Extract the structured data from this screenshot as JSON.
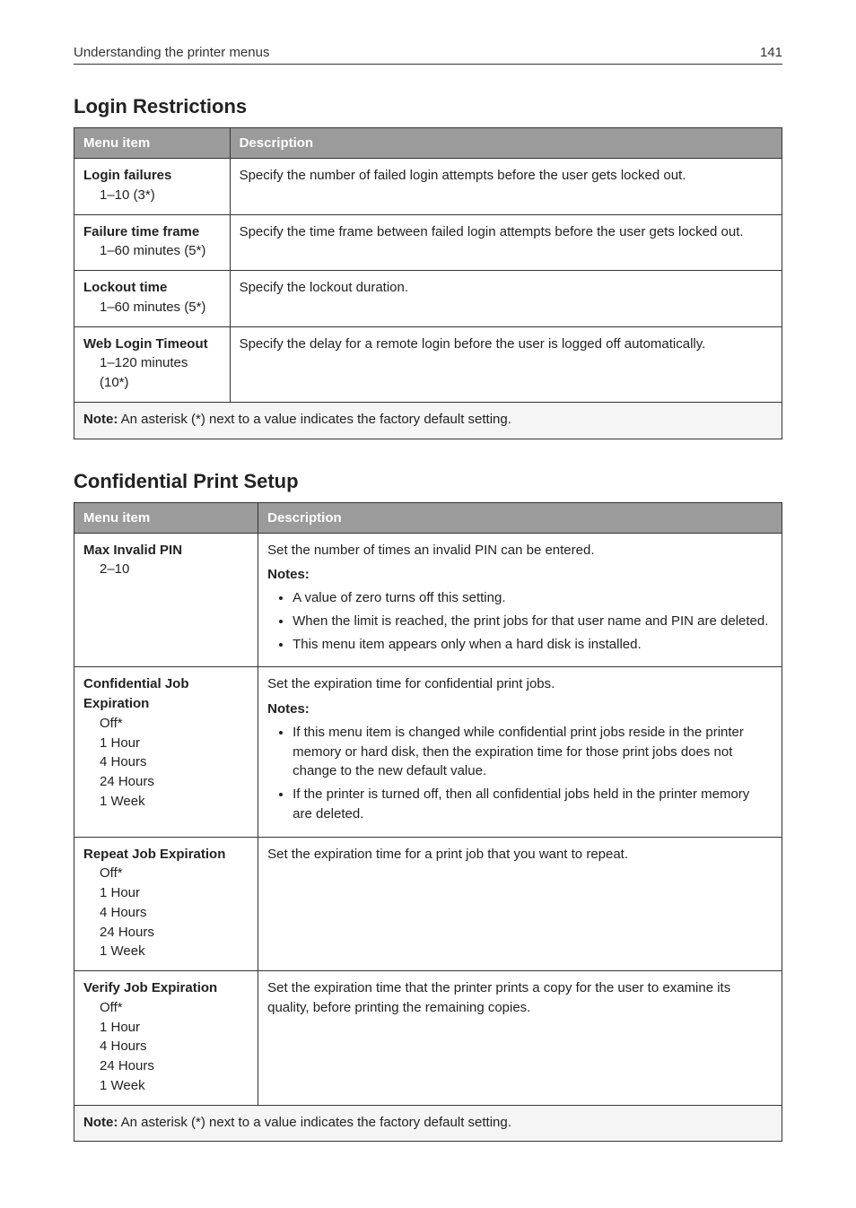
{
  "header": {
    "title": "Understanding the printer menus",
    "page_number": "141"
  },
  "section1": {
    "heading": "Login Restrictions",
    "columns": [
      "Menu item",
      "Description"
    ],
    "rows": [
      {
        "name": "Login failures",
        "options": [
          "1–10 (3*)"
        ],
        "desc": "Specify the number of failed login attempts before the user gets locked out."
      },
      {
        "name": "Failure time frame",
        "options": [
          "1–60 minutes (5*)"
        ],
        "desc": "Specify the time frame between failed login attempts before the user gets locked out."
      },
      {
        "name": "Lockout time",
        "options": [
          "1–60 minutes (5*)"
        ],
        "desc": "Specify the lockout duration."
      },
      {
        "name": "Web Login Timeout",
        "options": [
          "1–120 minutes (10*)"
        ],
        "desc": "Specify the delay for a remote login before the user is logged off automatically."
      }
    ],
    "note_label": "Note:",
    "note_text": "An asterisk (*) next to a value indicates the factory default setting."
  },
  "section2": {
    "heading": "Confidential Print Setup",
    "columns": [
      "Menu item",
      "Description"
    ],
    "rows": [
      {
        "name": "Max Invalid PIN",
        "options": [
          "2–10"
        ],
        "desc": "Set the number of times an invalid PIN can be entered.",
        "notes_label": "Notes:",
        "notes": [
          "A value of zero turns off this setting.",
          "When the limit is reached, the print jobs for that user name and PIN are deleted.",
          "This menu item appears only when a hard disk is installed."
        ]
      },
      {
        "name": "Confidential Job Expiration",
        "options": [
          "Off*",
          "1 Hour",
          "4 Hours",
          "24 Hours",
          "1 Week"
        ],
        "desc": "Set the expiration time for confidential print jobs.",
        "notes_label": "Notes:",
        "notes": [
          "If this menu item is changed while confidential print jobs reside in the printer memory or hard disk, then the expiration time for those print jobs does not change to the new default value.",
          "If the printer is turned off, then all confidential jobs held in the printer memory are deleted."
        ]
      },
      {
        "name": "Repeat Job Expiration",
        "options": [
          "Off*",
          "1 Hour",
          "4 Hours",
          "24 Hours",
          "1 Week"
        ],
        "desc": "Set the expiration time for a print job that you want to repeat."
      },
      {
        "name": "Verify Job Expiration",
        "options": [
          "Off*",
          "1 Hour",
          "4 Hours",
          "24 Hours",
          "1 Week"
        ],
        "desc": "Set the expiration time that the printer prints a copy for the user to examine its quality, before printing the remaining copies."
      }
    ],
    "note_label": "Note:",
    "note_text": "An asterisk (*) next to a value indicates the factory default setting."
  }
}
